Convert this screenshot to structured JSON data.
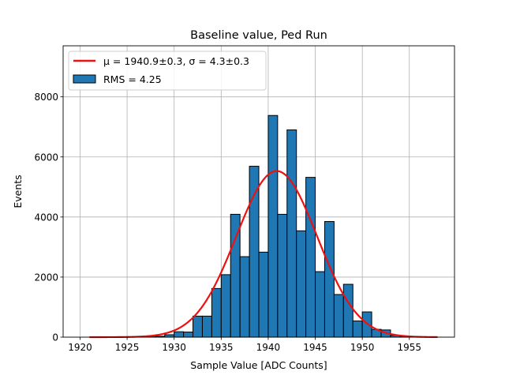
{
  "chart_data": {
    "type": "bar",
    "title": "Baseline value, Ped Run",
    "xlabel": "Sample Value [ADC Counts]",
    "ylabel": "Events",
    "xlim": [
      1918.2,
      1959.8
    ],
    "ylim": [
      0,
      9700
    ],
    "xticks": [
      1920,
      1925,
      1930,
      1935,
      1940,
      1945,
      1950,
      1955
    ],
    "yticks": [
      0,
      2000,
      4000,
      6000,
      8000
    ],
    "grid": true,
    "legend_position": "top-left",
    "bin_width": 1,
    "bins": [
      {
        "x": 1925,
        "value": 5
      },
      {
        "x": 1926,
        "value": 5
      },
      {
        "x": 1927,
        "value": 10
      },
      {
        "x": 1928,
        "value": 30
      },
      {
        "x": 1929,
        "value": 80
      },
      {
        "x": 1930,
        "value": 180
      },
      {
        "x": 1931,
        "value": 170
      },
      {
        "x": 1932,
        "value": 700
      },
      {
        "x": 1933,
        "value": 700
      },
      {
        "x": 1934,
        "value": 1620
      },
      {
        "x": 1935,
        "value": 2080
      },
      {
        "x": 1936,
        "value": 4090
      },
      {
        "x": 1937,
        "value": 2680
      },
      {
        "x": 1938,
        "value": 5690
      },
      {
        "x": 1939,
        "value": 2830
      },
      {
        "x": 1940,
        "value": 7380
      },
      {
        "x": 1941,
        "value": 4090
      },
      {
        "x": 1942,
        "value": 6900
      },
      {
        "x": 1943,
        "value": 3540
      },
      {
        "x": 1944,
        "value": 5320
      },
      {
        "x": 1945,
        "value": 2180
      },
      {
        "x": 1946,
        "value": 3850
      },
      {
        "x": 1947,
        "value": 1420
      },
      {
        "x": 1948,
        "value": 1760
      },
      {
        "x": 1949,
        "value": 540
      },
      {
        "x": 1950,
        "value": 840
      },
      {
        "x": 1951,
        "value": 260
      },
      {
        "x": 1952,
        "value": 240
      },
      {
        "x": 1953,
        "value": 60
      },
      {
        "x": 1954,
        "value": 20
      },
      {
        "x": 1955,
        "value": 5
      }
    ],
    "fit": {
      "type": "gaussian",
      "mu": 1940.9,
      "sigma": 4.3,
      "amplitude": 5530,
      "x_range": [
        1921,
        1958
      ],
      "color": "#ee1111"
    },
    "bar_color": "#1f77b4",
    "legend": [
      {
        "label": "μ = 1940.9±0.3, σ = 4.3±0.3",
        "kind": "line",
        "color": "#ee1111"
      },
      {
        "label": "RMS = 4.25",
        "kind": "patch",
        "color": "#1f77b4"
      }
    ]
  }
}
